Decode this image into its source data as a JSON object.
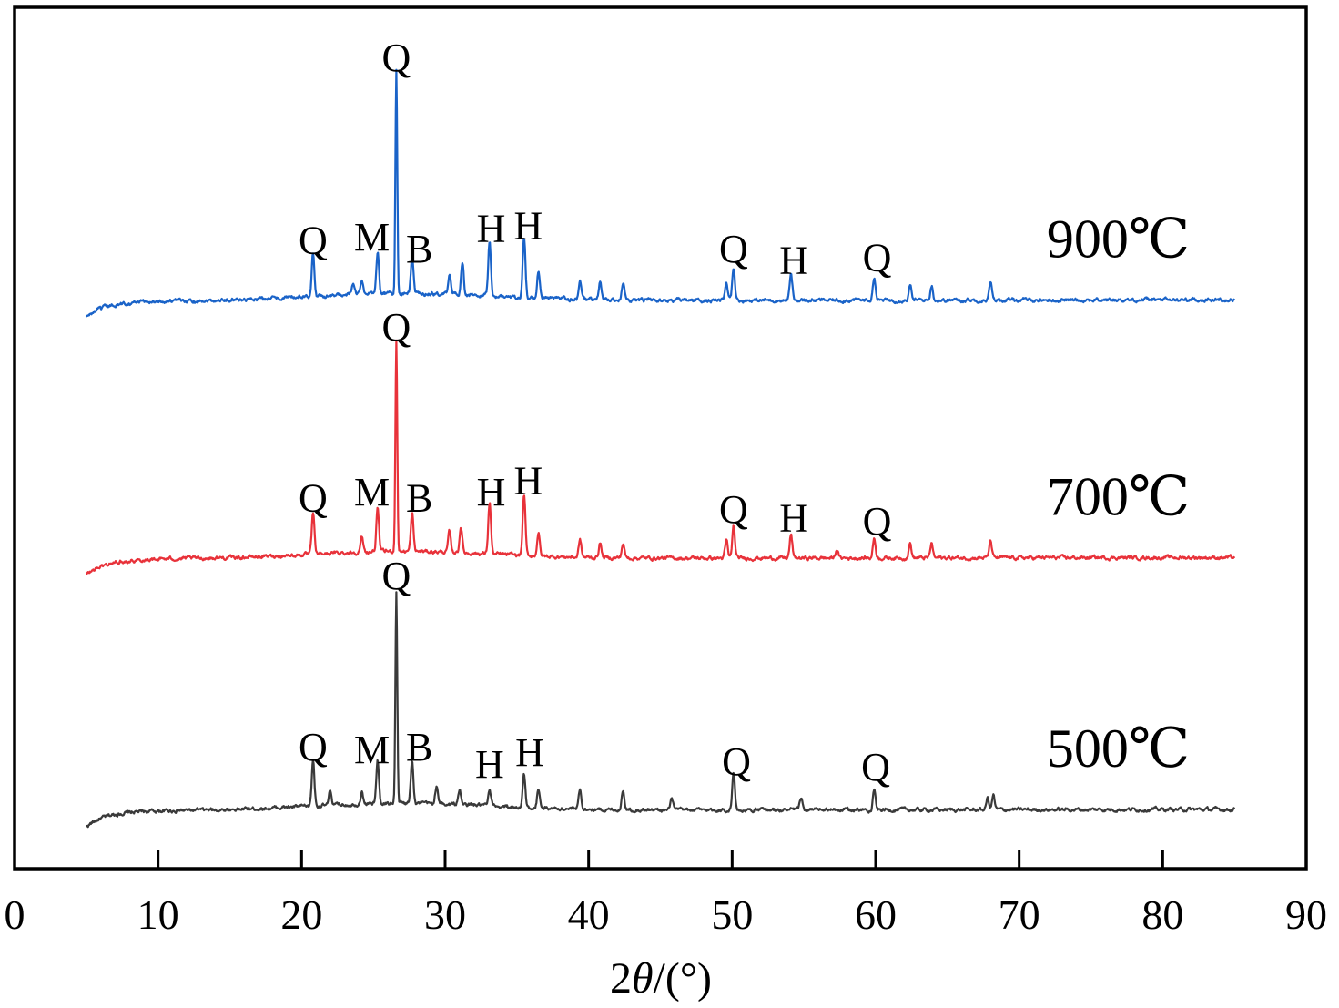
{
  "chart_data": {
    "type": "line",
    "title": "",
    "xlabel_parts": [
      "2",
      "θ",
      "/(°)"
    ],
    "ylabel": "",
    "xlim": [
      0,
      90
    ],
    "xticks": [
      0,
      10,
      20,
      30,
      40,
      50,
      60,
      70,
      80,
      90
    ],
    "x_range": [
      5,
      85
    ],
    "y_axis": "offset intensity (arbitrary units, no ticks)",
    "series": [
      {
        "name": "500℃",
        "color": "#3a3a3a",
        "baseline": 0.0,
        "peaks": [
          {
            "x": 20.8,
            "h": 0.16
          },
          {
            "x": 22.0,
            "h": 0.05
          },
          {
            "x": 24.2,
            "h": 0.04
          },
          {
            "x": 25.3,
            "h": 0.15
          },
          {
            "x": 26.6,
            "h": 0.73
          },
          {
            "x": 27.7,
            "h": 0.15
          },
          {
            "x": 29.4,
            "h": 0.06
          },
          {
            "x": 31.0,
            "h": 0.05
          },
          {
            "x": 33.1,
            "h": 0.05
          },
          {
            "x": 35.5,
            "h": 0.11
          },
          {
            "x": 36.5,
            "h": 0.07
          },
          {
            "x": 39.4,
            "h": 0.07
          },
          {
            "x": 42.4,
            "h": 0.07
          },
          {
            "x": 45.8,
            "h": 0.04
          },
          {
            "x": 50.1,
            "h": 0.13
          },
          {
            "x": 54.8,
            "h": 0.04
          },
          {
            "x": 59.9,
            "h": 0.07
          },
          {
            "x": 67.8,
            "h": 0.04
          },
          {
            "x": 68.2,
            "h": 0.05
          }
        ],
        "labels": [
          {
            "x": 20.8,
            "text": "Q",
            "y": 0.23
          },
          {
            "x": 24.9,
            "text": "M",
            "y": 0.22
          },
          {
            "x": 28.2,
            "text": "B",
            "y": 0.23
          },
          {
            "x": 33.1,
            "text": "H",
            "y": 0.17
          },
          {
            "x": 35.9,
            "text": "H",
            "y": 0.21
          },
          {
            "x": 50.3,
            "text": "Q",
            "y": 0.18
          },
          {
            "x": 60.0,
            "text": "Q",
            "y": 0.16
          },
          {
            "x": 26.6,
            "text": "Q",
            "y": 0.82
          }
        ]
      },
      {
        "name": "700℃",
        "color": "#e8323a",
        "baseline": 0.87,
        "peaks": [
          {
            "x": 20.8,
            "h": 0.14
          },
          {
            "x": 24.2,
            "h": 0.05
          },
          {
            "x": 25.3,
            "h": 0.15
          },
          {
            "x": 26.6,
            "h": 0.73
          },
          {
            "x": 27.7,
            "h": 0.13
          },
          {
            "x": 30.3,
            "h": 0.07
          },
          {
            "x": 31.1,
            "h": 0.09
          },
          {
            "x": 33.1,
            "h": 0.18
          },
          {
            "x": 35.5,
            "h": 0.21
          },
          {
            "x": 36.5,
            "h": 0.08
          },
          {
            "x": 39.4,
            "h": 0.06
          },
          {
            "x": 40.8,
            "h": 0.05
          },
          {
            "x": 42.4,
            "h": 0.05
          },
          {
            "x": 49.6,
            "h": 0.06
          },
          {
            "x": 50.1,
            "h": 0.11
          },
          {
            "x": 54.1,
            "h": 0.08
          },
          {
            "x": 57.3,
            "h": 0.03
          },
          {
            "x": 59.9,
            "h": 0.07
          },
          {
            "x": 62.4,
            "h": 0.05
          },
          {
            "x": 63.9,
            "h": 0.05
          },
          {
            "x": 68.0,
            "h": 0.06
          }
        ],
        "labels": [
          {
            "x": 20.8,
            "text": "Q",
            "y": 0.22
          },
          {
            "x": 24.9,
            "text": "M",
            "y": 0.24
          },
          {
            "x": 28.2,
            "text": "B",
            "y": 0.22
          },
          {
            "x": 33.2,
            "text": "H",
            "y": 0.24
          },
          {
            "x": 35.8,
            "text": "H",
            "y": 0.28
          },
          {
            "x": 50.1,
            "text": "Q",
            "y": 0.18
          },
          {
            "x": 54.3,
            "text": "H",
            "y": 0.15
          },
          {
            "x": 60.1,
            "text": "Q",
            "y": 0.14
          },
          {
            "x": 26.6,
            "text": "Q",
            "y": 0.81
          }
        ]
      },
      {
        "name": "900℃",
        "color": "#1a63c8",
        "baseline": 1.76,
        "peaks": [
          {
            "x": 20.8,
            "h": 0.15
          },
          {
            "x": 23.6,
            "h": 0.04
          },
          {
            "x": 24.2,
            "h": 0.05
          },
          {
            "x": 25.3,
            "h": 0.15
          },
          {
            "x": 26.6,
            "h": 0.77
          },
          {
            "x": 27.7,
            "h": 0.12
          },
          {
            "x": 30.3,
            "h": 0.07
          },
          {
            "x": 31.2,
            "h": 0.11
          },
          {
            "x": 33.1,
            "h": 0.19
          },
          {
            "x": 35.5,
            "h": 0.21
          },
          {
            "x": 36.5,
            "h": 0.09
          },
          {
            "x": 39.4,
            "h": 0.06
          },
          {
            "x": 40.8,
            "h": 0.06
          },
          {
            "x": 42.4,
            "h": 0.06
          },
          {
            "x": 49.6,
            "h": 0.06
          },
          {
            "x": 50.1,
            "h": 0.11
          },
          {
            "x": 54.1,
            "h": 0.09
          },
          {
            "x": 59.9,
            "h": 0.08
          },
          {
            "x": 62.4,
            "h": 0.05
          },
          {
            "x": 63.9,
            "h": 0.05
          },
          {
            "x": 68.0,
            "h": 0.06
          }
        ],
        "labels": [
          {
            "x": 20.8,
            "text": "Q",
            "y": 0.22
          },
          {
            "x": 24.9,
            "text": "M",
            "y": 0.23
          },
          {
            "x": 28.2,
            "text": "B",
            "y": 0.19
          },
          {
            "x": 33.2,
            "text": "H",
            "y": 0.26
          },
          {
            "x": 35.8,
            "text": "H",
            "y": 0.27
          },
          {
            "x": 50.1,
            "text": "Q",
            "y": 0.19
          },
          {
            "x": 54.3,
            "text": "H",
            "y": 0.15
          },
          {
            "x": 60.1,
            "text": "Q",
            "y": 0.16
          },
          {
            "x": 26.6,
            "text": "Q",
            "y": 0.85
          }
        ]
      }
    ]
  }
}
